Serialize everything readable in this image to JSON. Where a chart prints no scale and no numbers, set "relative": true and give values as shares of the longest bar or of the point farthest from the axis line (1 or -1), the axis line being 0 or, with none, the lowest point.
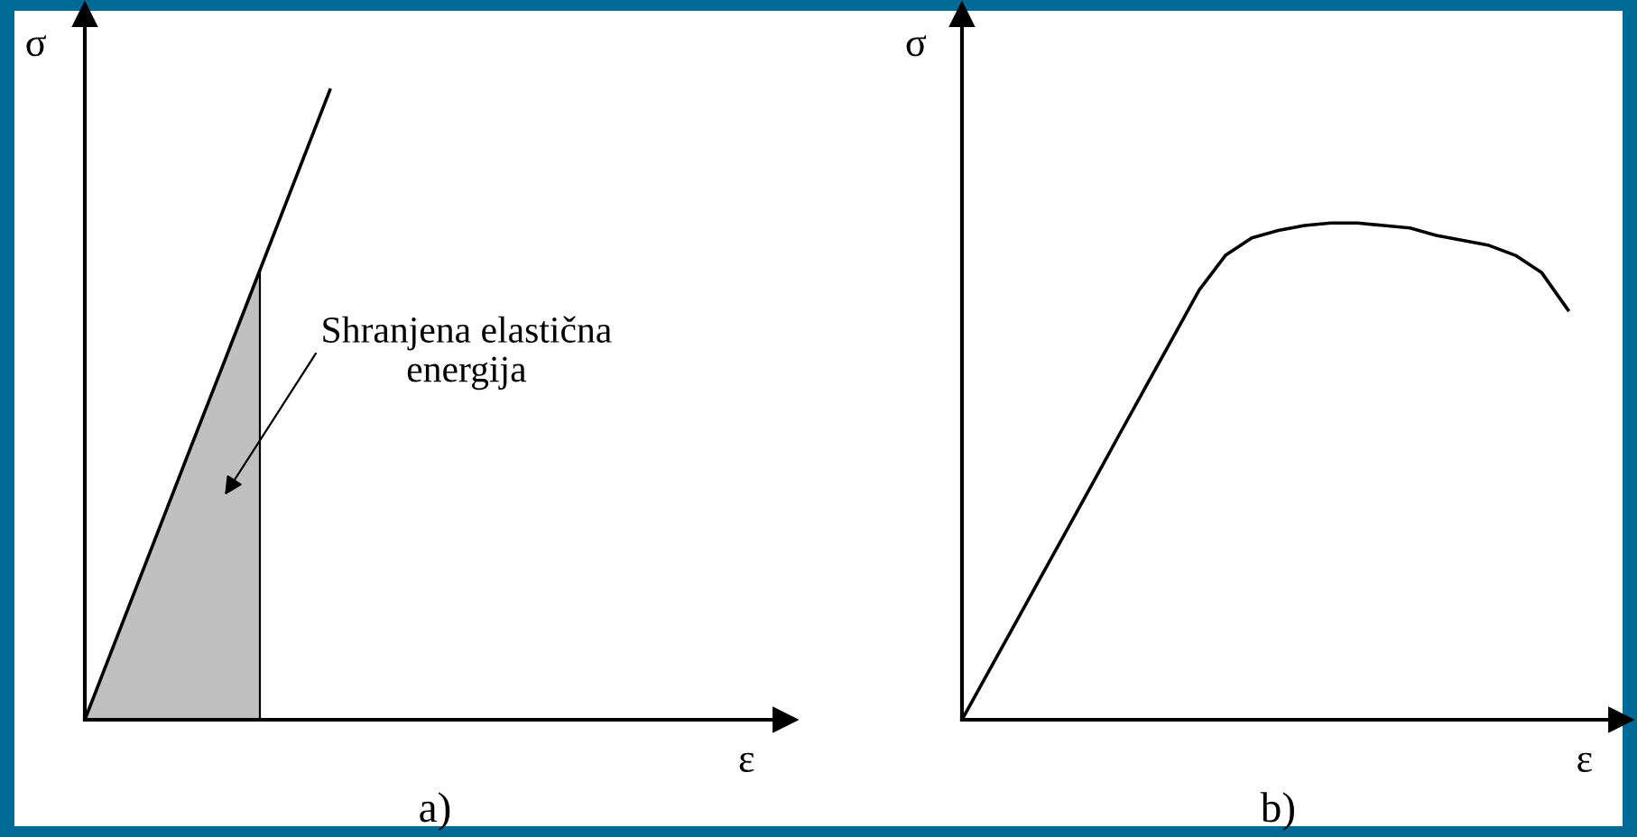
{
  "chart_data": [
    {
      "type": "line",
      "title": "a)",
      "xlabel": "ε",
      "ylabel": "σ",
      "relative": true,
      "ylim": [
        0,
        1.12
      ],
      "categories": [
        null,
        null,
        null,
        null,
        null,
        null,
        null,
        null,
        null,
        null,
        null,
        null,
        null,
        null,
        null,
        null,
        null,
        null,
        null,
        null,
        null
      ],
      "series": [
        {
          "color": "#000000",
          "values": [
            0,
            0.143,
            0.286,
            0.429,
            0.571,
            0.714,
            0.857,
            1,
            null,
            null,
            null,
            null,
            null,
            null,
            null,
            null,
            null,
            null,
            null,
            null,
            null
          ]
        },
        {
          "type": "area",
          "color": "#c0c0c0",
          "values": [
            0,
            0.143,
            0.286,
            0.429,
            0.571,
            0.714,
            null,
            null,
            null,
            null,
            null,
            null,
            null,
            null,
            null,
            null,
            null,
            null,
            null,
            null,
            null
          ]
        }
      ],
      "annotations": [
        "Shranjena elastična\nenergija"
      ]
    },
    {
      "type": "line",
      "title": "b)",
      "xlabel": "ε",
      "ylabel": "σ",
      "relative": true,
      "ylim": [
        0,
        1.42
      ],
      "categories": [
        null,
        null,
        null,
        null,
        null,
        null,
        null,
        null,
        null,
        null,
        null,
        null,
        null,
        null,
        null,
        null,
        null,
        null,
        null,
        null,
        null,
        null,
        null,
        null,
        null,
        null
      ],
      "series": [
        {
          "color": "#000000",
          "values": [
            0,
            0.096,
            0.192,
            0.288,
            0.384,
            0.48,
            0.577,
            0.673,
            0.769,
            0.865,
            0.935,
            0.97,
            0.985,
            0.995,
            1,
            1,
            0.995,
            0.99,
            0.975,
            0.965,
            0.955,
            0.935,
            0.9,
            0.825,
            null,
            null
          ]
        }
      ]
    }
  ]
}
